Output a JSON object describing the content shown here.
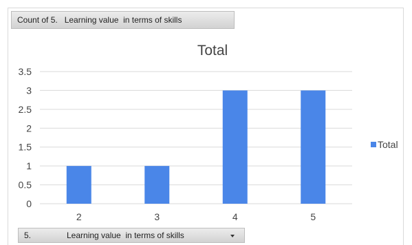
{
  "pivot": {
    "value_field_button": "Count of 5.   Learning value  in terms of skills",
    "axis_field_number": "5.",
    "axis_field_label": "Learning value  in terms of skills"
  },
  "chart_data": {
    "type": "bar",
    "title": "Total",
    "categories": [
      "2",
      "3",
      "4",
      "5"
    ],
    "series": [
      {
        "name": "Total",
        "values": [
          1,
          1,
          3,
          3
        ],
        "color": "#4a86e8"
      }
    ],
    "ylim": [
      0,
      3.5
    ],
    "yticks": [
      "0",
      "0.5",
      "1",
      "1.5",
      "2",
      "2.5",
      "3",
      "3.5"
    ],
    "grid": true,
    "legend": "right"
  }
}
